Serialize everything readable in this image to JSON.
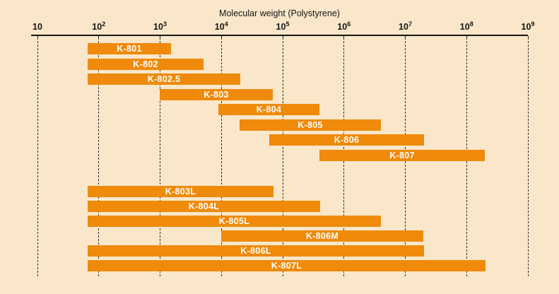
{
  "title": "Molecular weight (Polystyrene)",
  "colors": {
    "background": "#FAE7CA",
    "bar": "#EF8A0B",
    "bar_text": "#FFFFFF",
    "axis": "#161616"
  },
  "chart_data": {
    "type": "bar",
    "orientation": "horizontal-range",
    "title": "Molecular weight (Polystyrene)",
    "x_axis": {
      "scale": "log10",
      "min": 10,
      "max": 1000000000,
      "tick_exponents": [
        1,
        2,
        3,
        4,
        5,
        6,
        7,
        8,
        9
      ],
      "gridlines": "dashed-vertical"
    },
    "legend": "none",
    "bars": [
      {
        "label": "K-801",
        "mw_min": 65,
        "mw_max": 1500,
        "group": 1
      },
      {
        "label": "K-802",
        "mw_min": 65,
        "mw_max": 5000,
        "group": 1
      },
      {
        "label": "K-802.5",
        "mw_min": 65,
        "mw_max": 20000,
        "group": 1
      },
      {
        "label": "K-803",
        "mw_min": 1000,
        "mw_max": 70000,
        "group": 1
      },
      {
        "label": "K-804",
        "mw_min": 9000,
        "mw_max": 400000,
        "group": 1
      },
      {
        "label": "K-805",
        "mw_min": 20000,
        "mw_max": 4000000,
        "group": 1
      },
      {
        "label": "K-806",
        "mw_min": 60000,
        "mw_max": 20000000,
        "group": 1
      },
      {
        "label": "K-807",
        "mw_min": 400000,
        "mw_max": 200000000,
        "group": 1
      },
      {
        "label": "K-803L",
        "mw_min": 65,
        "mw_max": 70000,
        "group": 2
      },
      {
        "label": "K-804L",
        "mw_min": 65,
        "mw_max": 400000,
        "group": 2
      },
      {
        "label": "K-805L",
        "mw_min": 65,
        "mw_max": 4000000,
        "group": 2
      },
      {
        "label": "K-806M",
        "mw_min": 10000,
        "mw_max": 20000000,
        "group": 2
      },
      {
        "label": "K-806L",
        "mw_min": 65,
        "mw_max": 20000000,
        "group": 2
      },
      {
        "label": "K-807L",
        "mw_min": 65,
        "mw_max": 200000000,
        "group": 2
      }
    ]
  }
}
